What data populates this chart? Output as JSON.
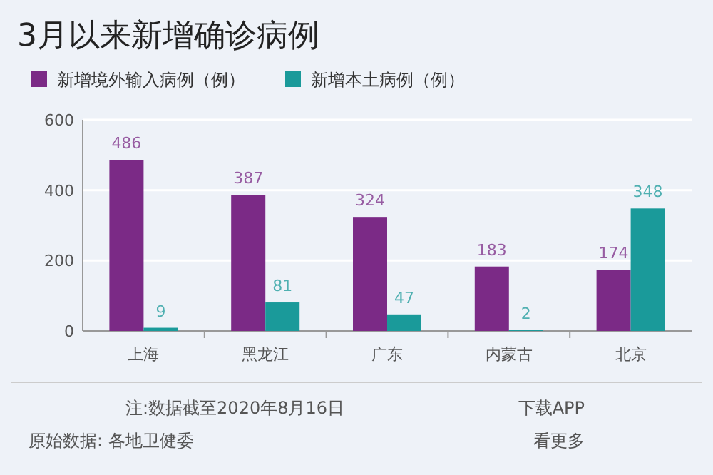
{
  "chart_data": {
    "type": "bar",
    "title": "3月以来新增确诊病例",
    "categories": [
      "上海",
      "黑龙江",
      "广东",
      "内蒙古",
      "北京"
    ],
    "series": [
      {
        "name": "新增境外输入病例（例）",
        "color": "#7b2a86",
        "values": [
          486,
          387,
          324,
          183,
          174
        ]
      },
      {
        "name": "新增本土病例（例）",
        "color": "#1a9a9a",
        "values": [
          9,
          81,
          47,
          2,
          348
        ]
      }
    ],
    "ylim": [
      0,
      600
    ],
    "yticks": [
      0,
      200,
      400,
      600
    ],
    "grid": "y",
    "legend": "top left",
    "data_labels": true,
    "annotations": [
      "注:数据截至2020年8月16日",
      "原始数据: 各地卫健委",
      "下载APP",
      "看更多"
    ]
  }
}
